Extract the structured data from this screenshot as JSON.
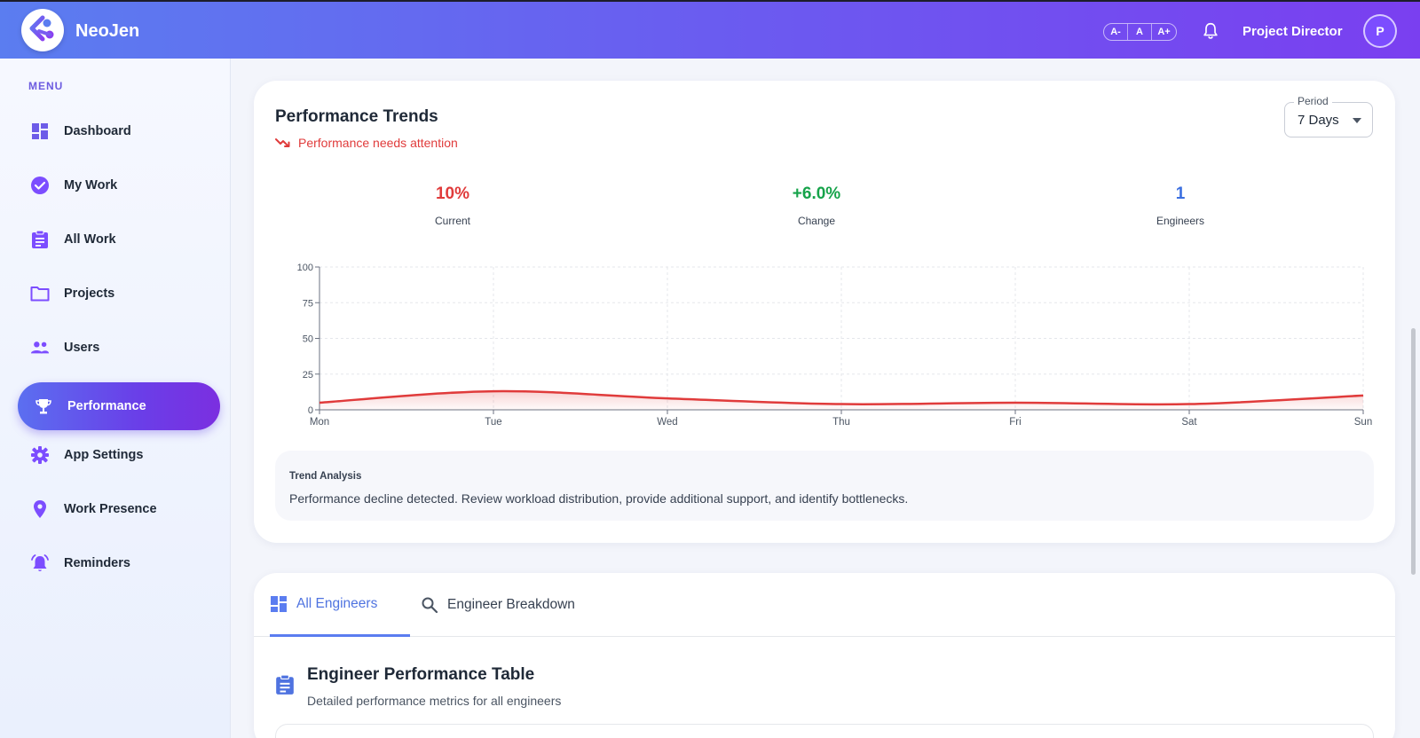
{
  "header": {
    "brand": "NeoJen",
    "font_controls": [
      "A-",
      "A",
      "A+"
    ],
    "role": "Project Director",
    "avatar_initial": "P"
  },
  "sidebar": {
    "menu_title": "MENU",
    "items": [
      {
        "label": "Dashboard",
        "icon": "dashboard-icon"
      },
      {
        "label": "My Work",
        "icon": "check-circle-icon"
      },
      {
        "label": "All Work",
        "icon": "clipboard-icon"
      },
      {
        "label": "Projects",
        "icon": "folder-icon"
      },
      {
        "label": "Users",
        "icon": "users-icon"
      },
      {
        "label": "Performance",
        "icon": "trophy-icon",
        "active": true
      },
      {
        "label": "App Settings",
        "icon": "gear-icon"
      },
      {
        "label": "Work Presence",
        "icon": "location-pin-icon"
      },
      {
        "label": "Reminders",
        "icon": "alarm-icon"
      }
    ]
  },
  "trends": {
    "title": "Performance Trends",
    "status": "Performance needs attention",
    "period": {
      "label": "Period",
      "value": "7 Days"
    },
    "stats": [
      {
        "value": "10%",
        "label": "Current",
        "color": "#e03b3b"
      },
      {
        "value": "+6.0%",
        "label": "Change",
        "color": "#16a34a"
      },
      {
        "value": "1",
        "label": "Engineers",
        "color": "#3b6fe0"
      }
    ],
    "analysis": {
      "title": "Trend Analysis",
      "text": "Performance decline detected. Review workload distribution, provide additional support, and identify bottlenecks."
    }
  },
  "chart_data": {
    "type": "area",
    "categories": [
      "Mon",
      "Tue",
      "Wed",
      "Thu",
      "Fri",
      "Sat",
      "Sun"
    ],
    "values": [
      5,
      13,
      8,
      4,
      5,
      4,
      10
    ],
    "ylim": [
      0,
      100
    ],
    "yticks": [
      0,
      25,
      50,
      75,
      100
    ],
    "grid": true,
    "line_color": "#e03b3b"
  },
  "table_section": {
    "tabs": [
      {
        "label": "All Engineers",
        "icon": "grid-icon",
        "active": true
      },
      {
        "label": "Engineer Breakdown",
        "icon": "search-icon"
      }
    ],
    "title": "Engineer Performance Table",
    "subtitle": "Detailed performance metrics for all engineers"
  }
}
